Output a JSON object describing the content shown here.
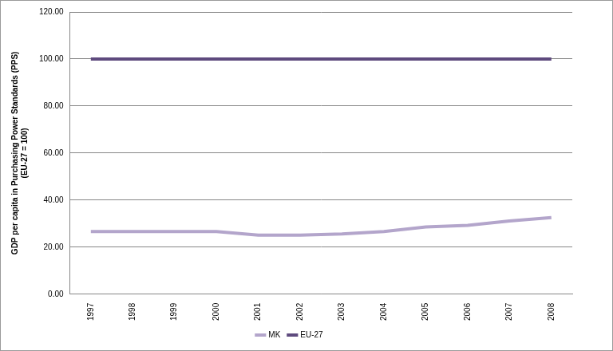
{
  "chart_data": {
    "type": "line",
    "ylabel": [
      "GDP per capita in Purchasing Power Standards (PPS)",
      "(EU-27 = 100)"
    ],
    "categories": [
      "1997",
      "1998",
      "1999",
      "2000",
      "2001",
      "2002",
      "2003",
      "2004",
      "2005",
      "2006",
      "2007",
      "2008"
    ],
    "series": [
      {
        "name": "MK",
        "color": "#b3a5cb",
        "values": [
          26.6,
          26.6,
          26.6,
          26.6,
          25.1,
          25.1,
          25.6,
          26.6,
          28.6,
          29.3,
          31.1,
          32.6
        ]
      },
      {
        "name": "EU-27",
        "color": "#5e4a7e",
        "values": [
          100,
          100,
          100,
          100,
          100,
          100,
          100,
          100,
          100,
          100,
          100,
          100
        ]
      }
    ],
    "ylim": [
      0,
      120
    ],
    "yticks": [
      {
        "value": 0,
        "label": "0.00"
      },
      {
        "value": 20,
        "label": "20.00"
      },
      {
        "value": 40,
        "label": "40.00"
      },
      {
        "value": 60,
        "label": "60.00"
      },
      {
        "value": 80,
        "label": "80.00"
      },
      {
        "value": 100,
        "label": "100.00"
      },
      {
        "value": 120,
        "label": "120.00"
      }
    ],
    "grid": true,
    "legend": "bottom"
  }
}
